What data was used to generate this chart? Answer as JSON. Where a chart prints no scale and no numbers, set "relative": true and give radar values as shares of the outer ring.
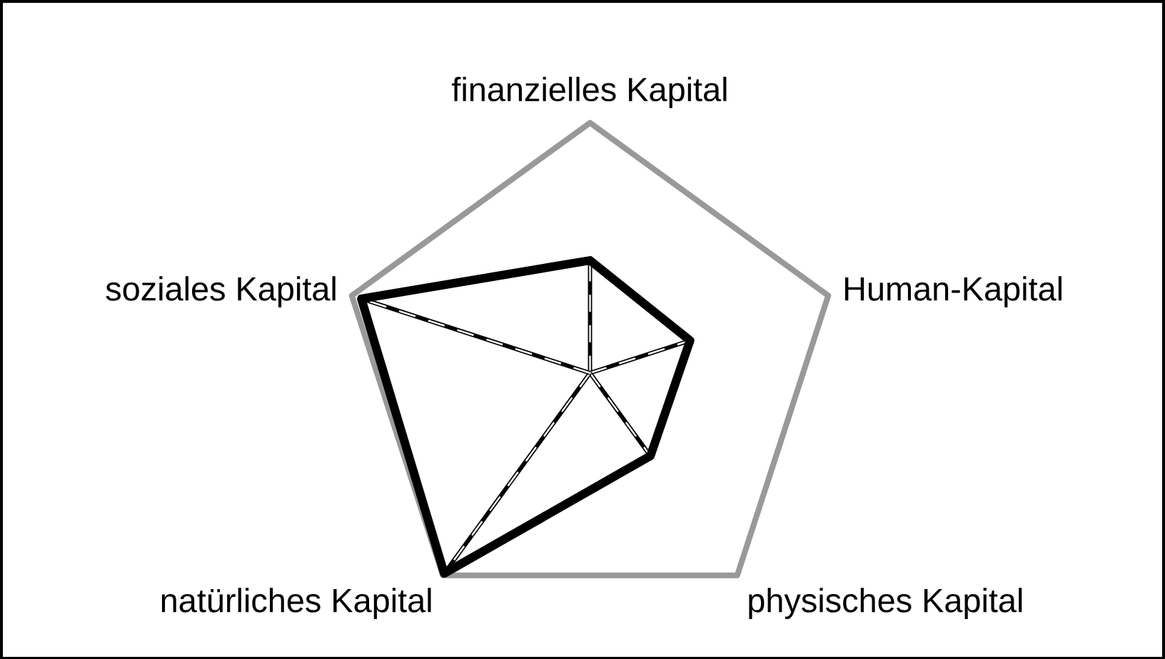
{
  "chart_data": {
    "type": "radar",
    "relative": true,
    "grid": true,
    "categories": [
      "finanzielles Kapital",
      "Human-Kapital",
      "physisches Kapital",
      "natürliches Kapital",
      "soziales Kapital"
    ],
    "series": [
      {
        "color": "#000000",
        "values": [
          0.45,
          0.42,
          0.41,
          0.99,
          0.96
        ]
      }
    ]
  }
}
